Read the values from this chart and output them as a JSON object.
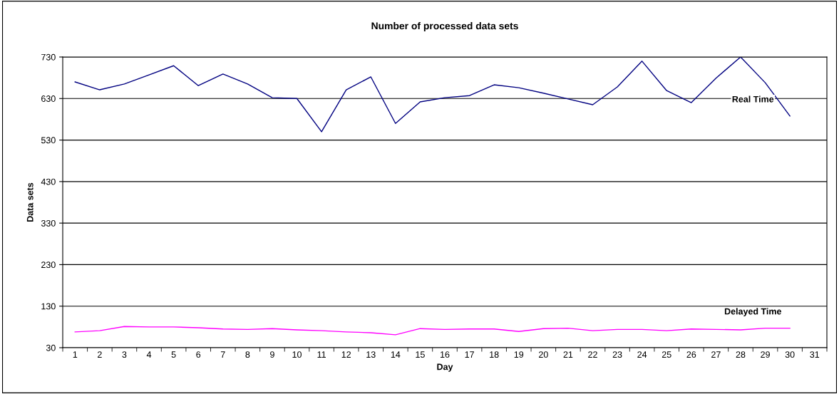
{
  "chart_data": {
    "type": "line",
    "title": "Number of processed data sets",
    "xlabel": "Day",
    "ylabel": "Data sets",
    "categories": [
      "1",
      "2",
      "3",
      "4",
      "5",
      "6",
      "7",
      "8",
      "9",
      "10",
      "11",
      "12",
      "13",
      "14",
      "15",
      "16",
      "17",
      "18",
      "19",
      "20",
      "21",
      "22",
      "23",
      "24",
      "25",
      "26",
      "27",
      "28",
      "29",
      "30",
      "31"
    ],
    "series": [
      {
        "name": "Real Time",
        "color": "#000080",
        "values": [
          670,
          651,
          665,
          687,
          709,
          661,
          689,
          665,
          632,
          630,
          550,
          651,
          682,
          570,
          622,
          632,
          637,
          663,
          656,
          643,
          629,
          615,
          658,
          720,
          649,
          620,
          679,
          730,
          668,
          588,
          null
        ]
      },
      {
        "name": "Delayed Time",
        "color": "#ff00ff",
        "values": [
          68,
          71,
          81,
          80,
          80,
          78,
          75,
          74,
          76,
          73,
          71,
          68,
          66,
          61,
          76,
          74,
          75,
          75,
          69,
          76,
          77,
          71,
          74,
          74,
          71,
          75,
          74,
          73,
          77,
          77,
          null
        ]
      }
    ],
    "ylim": [
      30,
      730
    ],
    "yticks": [
      30,
      130,
      230,
      330,
      430,
      530,
      630,
      730
    ],
    "grid": "y",
    "legend": false,
    "marker": "none",
    "line_style": "solid"
  }
}
